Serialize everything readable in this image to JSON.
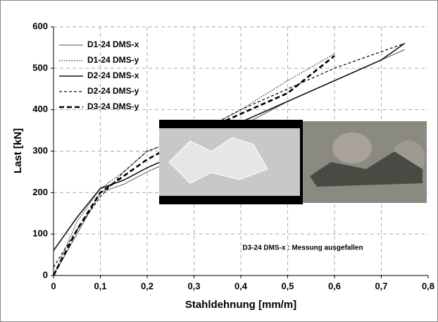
{
  "chart_data": {
    "type": "line",
    "xlabel": "Stahldehnung [mm/m]",
    "ylabel": "Last [kN]",
    "annotation": "D3-24 DMS-x : Messung ausgefallen",
    "x": [
      0,
      0.05,
      0.1,
      0.15,
      0.2,
      0.3,
      0.4,
      0.5,
      0.6,
      0.7,
      0.75
    ],
    "series": [
      {
        "name": "D1-24 DMS-x",
        "color": "#555555",
        "style": "solid",
        "width": 1,
        "values": [
          0,
          100,
          200,
          220,
          250,
          300,
          360,
          420,
          470,
          520,
          545
        ]
      },
      {
        "name": "D1-24 DMS-y",
        "color": "#333333",
        "style": "dotted",
        "width": 1.3,
        "values": [
          0,
          130,
          210,
          250,
          300,
          340,
          400,
          470,
          535,
          null,
          null
        ]
      },
      {
        "name": "D2-24 DMS-x",
        "color": "#111111",
        "style": "solid",
        "width": 1.6,
        "values": [
          60,
          140,
          210,
          230,
          260,
          310,
          370,
          420,
          470,
          520,
          560
        ]
      },
      {
        "name": "D2-24 DMS-y",
        "color": "#111111",
        "style": "dashed",
        "width": 1.3,
        "values": [
          20,
          110,
          190,
          250,
          300,
          340,
          400,
          450,
          500,
          540,
          560
        ]
      },
      {
        "name": "D3-24 DMS-y",
        "color": "#000000",
        "style": "longdash",
        "width": 2.6,
        "values": [
          0,
          110,
          200,
          240,
          280,
          340,
          390,
          440,
          530,
          null,
          null
        ]
      }
    ],
    "xlim": [
      0,
      0.8
    ],
    "xticks": [
      0,
      {
        "value": 0.1,
        "label": "0,1"
      },
      {
        "value": 0.2,
        "label": "0,2"
      },
      {
        "value": 0.3,
        "label": "0,3"
      },
      {
        "value": 0.4,
        "label": "0,4"
      },
      {
        "value": 0.5,
        "label": "0,5"
      },
      {
        "value": 0.6,
        "label": "0,6"
      },
      {
        "value": 0.7,
        "label": "0,7"
      },
      {
        "value": 0.8,
        "label": "0,8"
      }
    ],
    "ylim": [
      0,
      600
    ],
    "yticks": [
      0,
      100,
      200,
      300,
      400,
      500,
      600
    ],
    "grid": true
  }
}
